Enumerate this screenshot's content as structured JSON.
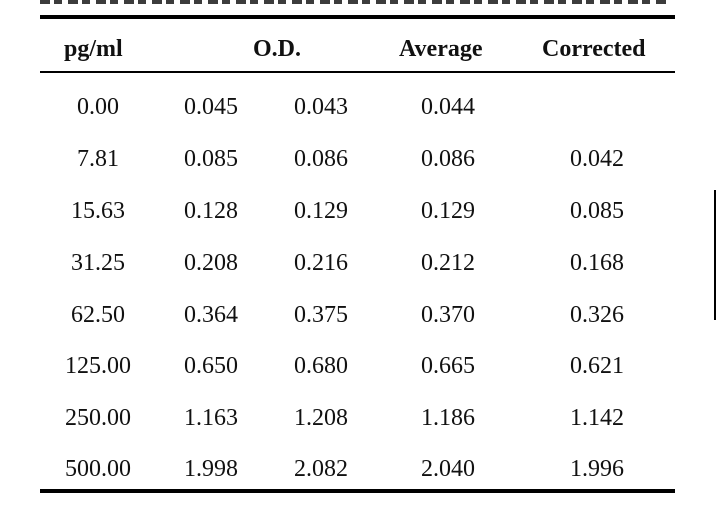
{
  "table": {
    "headers": {
      "pgml": "pg/ml",
      "od": "O.D.",
      "average": "Average",
      "corrected": "Corrected"
    },
    "rows": [
      {
        "pgml": "0.00",
        "od1": "0.045",
        "od2": "0.043",
        "average": "0.044",
        "corrected": ""
      },
      {
        "pgml": "7.81",
        "od1": "0.085",
        "od2": "0.086",
        "average": "0.086",
        "corrected": "0.042"
      },
      {
        "pgml": "15.63",
        "od1": "0.128",
        "od2": "0.129",
        "average": "0.129",
        "corrected": "0.085"
      },
      {
        "pgml": "31.25",
        "od1": "0.208",
        "od2": "0.216",
        "average": "0.212",
        "corrected": "0.168"
      },
      {
        "pgml": "62.50",
        "od1": "0.364",
        "od2": "0.375",
        "average": "0.370",
        "corrected": "0.326"
      },
      {
        "pgml": "125.00",
        "od1": "0.650",
        "od2": "0.680",
        "average": "0.665",
        "corrected": "0.621"
      },
      {
        "pgml": "250.00",
        "od1": "1.163",
        "od2": "1.208",
        "average": "1.186",
        "corrected": "1.142"
      },
      {
        "pgml": "500.00",
        "od1": "1.998",
        "od2": "2.082",
        "average": "2.040",
        "corrected": "1.996"
      }
    ]
  }
}
